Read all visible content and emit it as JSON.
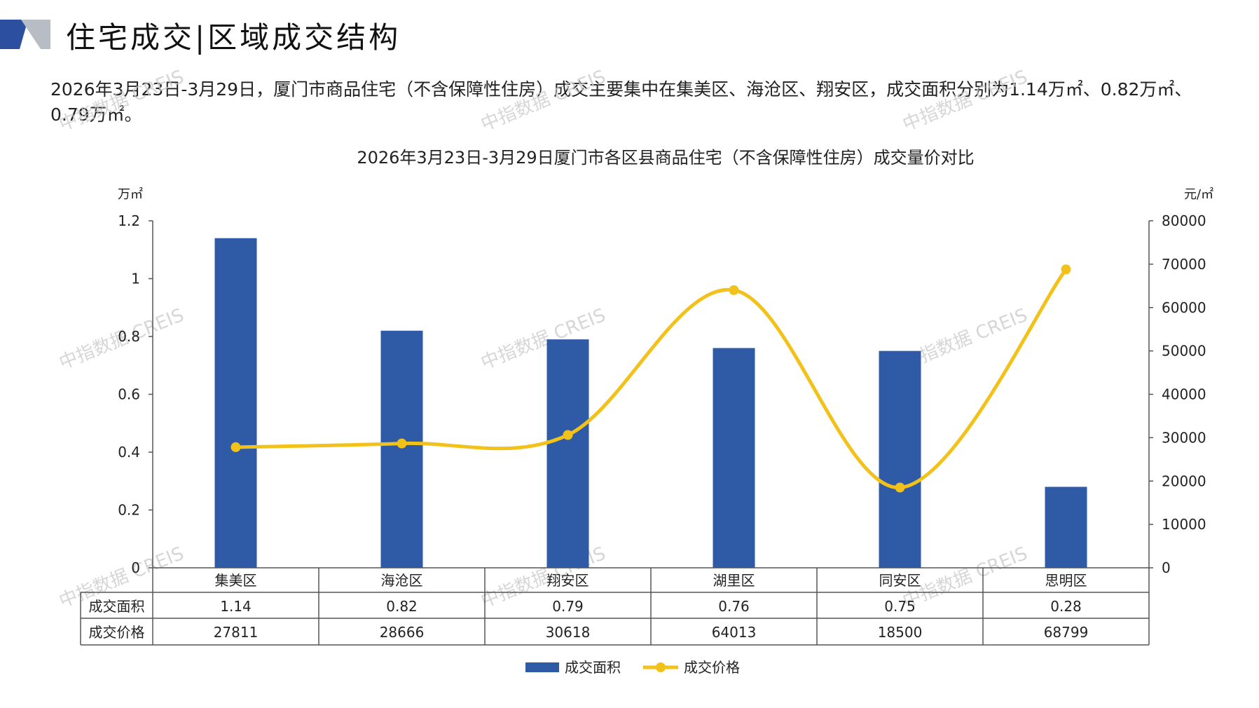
{
  "page": {
    "title": "住宅成交|区域成交结构",
    "summary": "2026年3月23日-3月29日，厦门市商品住宅（不含保障性住房）成交主要集中在集美区、海沧区、翔安区，成交面积分别为1.14万㎡、0.82万㎡、0.79万㎡。",
    "watermark": "中指数据 CREIS"
  },
  "colors": {
    "bar": "#2e5aa6",
    "line": "#f2c11a",
    "axis": "#555555",
    "header_dark": "#2d4fa0",
    "header_light": "#b8bcc4"
  },
  "chart_data": {
    "type": "bar",
    "title": "2026年3月23日-3月29日厦门市各区县商品住宅（不含保障性住房）成交量价对比",
    "categories": [
      "集美区",
      "海沧区",
      "翔安区",
      "湖里区",
      "同安区",
      "思明区"
    ],
    "y_left_unit": "万㎡",
    "y_right_unit": "元/㎡",
    "y_left_ticks": [
      "0",
      "0.2",
      "0.4",
      "0.6",
      "0.8",
      "1",
      "1.2"
    ],
    "y_right_ticks": [
      "0",
      "10000",
      "20000",
      "30000",
      "40000",
      "50000",
      "60000",
      "70000",
      "80000"
    ],
    "ylim_left": [
      0,
      1.2
    ],
    "ylim_right": [
      0,
      80000
    ],
    "series": [
      {
        "name": "成交面积",
        "type": "bar",
        "axis": "left",
        "values": [
          1.14,
          0.82,
          0.79,
          0.76,
          0.75,
          0.28
        ],
        "labels": [
          "1.14",
          "0.82",
          "0.79",
          "0.76",
          "0.75",
          "0.28"
        ]
      },
      {
        "name": "成交价格",
        "type": "line",
        "axis": "right",
        "smooth": true,
        "values": [
          27811,
          28666,
          30618,
          64013,
          18500,
          68799
        ],
        "labels": [
          "27811",
          "28666",
          "30618",
          "64013",
          "18500",
          "68799"
        ]
      }
    ],
    "legend_position": "bottom",
    "data_table": true
  }
}
